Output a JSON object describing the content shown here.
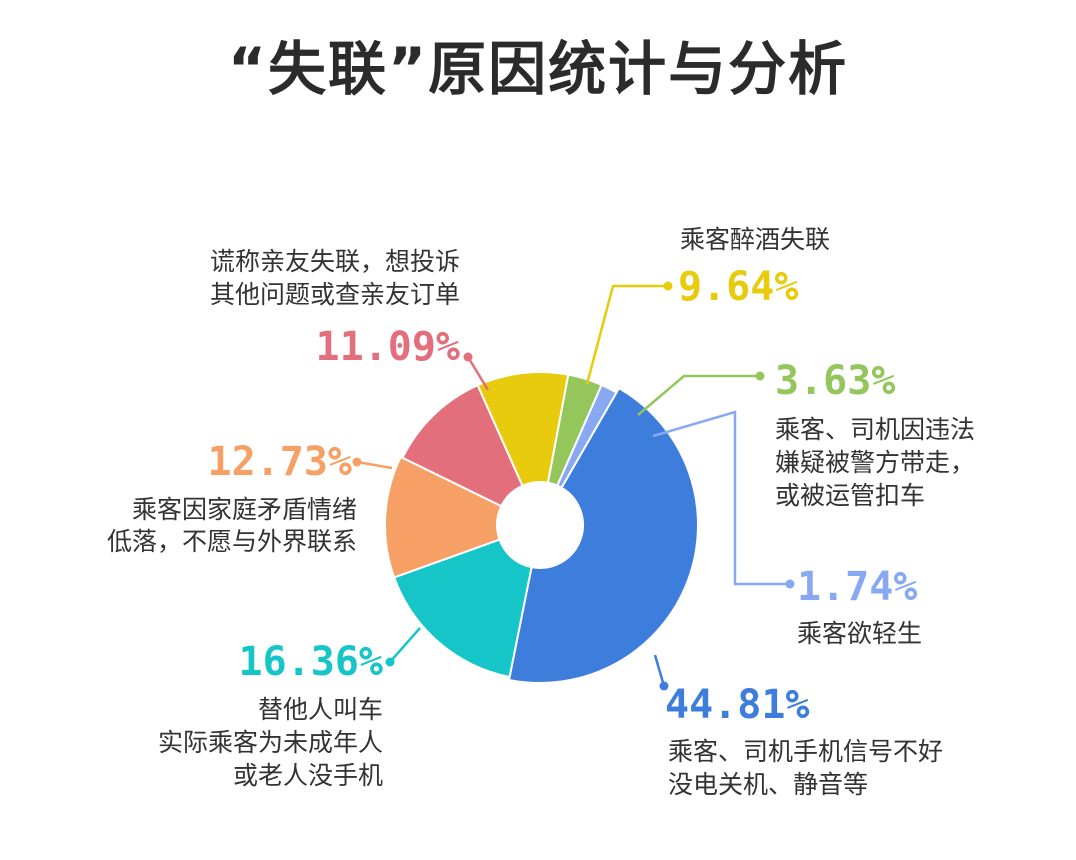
{
  "title": "“失联”原因统计与分析",
  "chart_data": {
    "type": "pie",
    "donut": true,
    "slices": [
      {
        "value_label": "44.81%",
        "value": 44.81,
        "desc": [
          "乘客、司机手机信号不好",
          "没电关机、静音等"
        ],
        "color": "#3d7ddb"
      },
      {
        "value_label": "16.36%",
        "value": 16.36,
        "desc": [
          "替他人叫车",
          "实际乘客为未成年人",
          "或老人没手机"
        ],
        "color": "#15c5c8"
      },
      {
        "value_label": "12.73%",
        "value": 12.73,
        "desc": [
          "乘客因家庭矛盾情绪",
          "低落，不愿与外界联系"
        ],
        "color": "#f6a066"
      },
      {
        "value_label": "11.09%",
        "value": 11.09,
        "desc": [
          "谎称亲友失联，想投诉",
          "其他问题或查亲友订单"
        ],
        "color": "#e36f7c"
      },
      {
        "value_label": "9.64%",
        "value": 9.64,
        "desc": [
          "乘客醉酒失联"
        ],
        "color": "#e9cb0d"
      },
      {
        "value_label": "3.63%",
        "value": 3.63,
        "desc": [
          "乘客、司机因违法",
          "嫌疑被警方带走，",
          "或被运管扣车"
        ],
        "color": "#94c65c"
      },
      {
        "value_label": "1.74%",
        "value": 1.74,
        "desc": [
          "乘客欲轻生"
        ],
        "color": "#88a9f2"
      }
    ]
  }
}
